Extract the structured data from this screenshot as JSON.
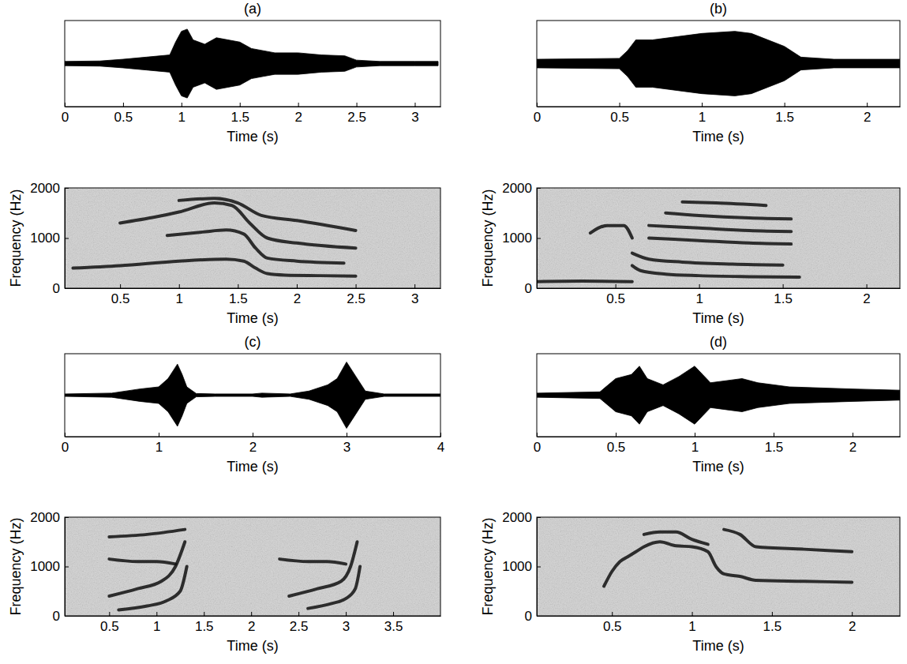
{
  "chart_data": [
    {
      "type": "area",
      "title": "(a)",
      "xlabel": "Time (s)",
      "color": "#000000",
      "x": [
        0,
        0.3,
        0.5,
        0.7,
        0.9,
        0.95,
        1.0,
        1.05,
        1.1,
        1.2,
        1.3,
        1.4,
        1.5,
        1.6,
        1.7,
        1.8,
        2.0,
        2.2,
        2.4,
        2.5,
        2.7,
        3.0,
        3.2
      ],
      "values": [
        0.05,
        0.06,
        0.1,
        0.15,
        0.2,
        0.5,
        0.75,
        0.8,
        0.55,
        0.45,
        0.6,
        0.55,
        0.5,
        0.35,
        0.3,
        0.25,
        0.25,
        0.2,
        0.18,
        0.08,
        0.05,
        0.05,
        0.05
      ],
      "xlim": [
        0,
        3.22
      ],
      "xticks": [
        0,
        0.5,
        1,
        1.5,
        2,
        2.5,
        3
      ],
      "ylim": [
        -1,
        1
      ],
      "tick_labels": "x"
    },
    {
      "type": "line",
      "xlabel": "Time (s)",
      "ylabel": "Frequency (Hz)",
      "color": "#111111",
      "xlim": [
        0.03,
        3.22
      ],
      "xticks": [
        0.5,
        1,
        1.5,
        2,
        2.5,
        3
      ],
      "ylim": [
        0,
        2000
      ],
      "yticks": [
        0,
        1000,
        2000
      ],
      "series": [
        {
          "x": [
            0.1,
            0.5,
            1.0,
            1.4,
            1.55,
            1.65,
            1.75,
            1.9,
            2.2,
            2.5
          ],
          "values": [
            400,
            450,
            540,
            580,
            540,
            400,
            290,
            260,
            250,
            240
          ]
        },
        {
          "x": [
            0.9,
            1.2,
            1.4,
            1.55,
            1.65,
            1.75,
            2.0,
            2.4
          ],
          "values": [
            1050,
            1120,
            1160,
            1080,
            800,
            600,
            540,
            500
          ]
        },
        {
          "x": [
            0.5,
            0.8,
            1.0,
            1.3,
            1.45,
            1.6,
            1.75,
            2.0,
            2.5
          ],
          "values": [
            1300,
            1420,
            1520,
            1700,
            1650,
            1300,
            1000,
            900,
            800
          ]
        },
        {
          "x": [
            1.0,
            1.3,
            1.5,
            1.7,
            2.0,
            2.5
          ],
          "values": [
            1750,
            1790,
            1700,
            1450,
            1350,
            1150
          ]
        }
      ]
    },
    {
      "type": "area",
      "title": "(b)",
      "xlabel": "Time (s)",
      "color": "#000000",
      "x": [
        0,
        0.5,
        0.55,
        0.6,
        0.7,
        0.8,
        1.0,
        1.2,
        1.3,
        1.4,
        1.5,
        1.6,
        1.8,
        2.0,
        2.2
      ],
      "values": [
        0.1,
        0.12,
        0.3,
        0.55,
        0.55,
        0.6,
        0.7,
        0.75,
        0.7,
        0.55,
        0.4,
        0.15,
        0.1,
        0.1,
        0.1
      ],
      "xlim": [
        0,
        2.2
      ],
      "xticks": [
        0,
        0.5,
        1,
        1.5,
        2
      ],
      "ylim": [
        -1,
        1
      ],
      "tick_labels": "x"
    },
    {
      "type": "line",
      "xlabel": "Time (s)",
      "ylabel": "Frequency (Hz)",
      "color": "#111111",
      "xlim": [
        0.03,
        2.2
      ],
      "xticks": [
        0.5,
        1,
        1.5,
        2
      ],
      "ylim": [
        0,
        2000
      ],
      "yticks": [
        0,
        1000,
        2000
      ],
      "series": [
        {
          "x": [
            0.03,
            0.3,
            0.6
          ],
          "values": [
            130,
            140,
            130
          ]
        },
        {
          "x": [
            0.35,
            0.45,
            0.55,
            0.6
          ],
          "values": [
            1100,
            1250,
            1250,
            1000
          ]
        },
        {
          "x": [
            0.6,
            0.65,
            0.8,
            1.0,
            1.3,
            1.6
          ],
          "values": [
            450,
            350,
            280,
            250,
            230,
            220
          ]
        },
        {
          "x": [
            0.6,
            0.7,
            0.9,
            1.2,
            1.5
          ],
          "values": [
            700,
            580,
            520,
            480,
            460
          ]
        },
        {
          "x": [
            0.7,
            1.0,
            1.3,
            1.55
          ],
          "values": [
            1000,
            950,
            900,
            880
          ]
        },
        {
          "x": [
            0.7,
            1.0,
            1.3,
            1.55
          ],
          "values": [
            1250,
            1200,
            1150,
            1130
          ]
        },
        {
          "x": [
            0.8,
            1.0,
            1.3,
            1.55
          ],
          "values": [
            1500,
            1450,
            1400,
            1380
          ]
        },
        {
          "x": [
            0.9,
            1.1,
            1.4
          ],
          "values": [
            1720,
            1700,
            1650
          ]
        }
      ]
    },
    {
      "type": "area",
      "title": "(c)",
      "xlabel": "Time (s)",
      "color": "#000000",
      "x": [
        0,
        0.5,
        0.8,
        1.0,
        1.1,
        1.2,
        1.25,
        1.3,
        1.4,
        1.6,
        2.0,
        2.1,
        2.4,
        2.6,
        2.8,
        2.9,
        3.0,
        3.1,
        3.2,
        3.4,
        4.0
      ],
      "values": [
        0.03,
        0.05,
        0.15,
        0.2,
        0.4,
        0.75,
        0.5,
        0.2,
        0.04,
        0.03,
        0.03,
        0.05,
        0.03,
        0.1,
        0.25,
        0.4,
        0.8,
        0.45,
        0.1,
        0.03,
        0.03
      ],
      "xlim": [
        0,
        4
      ],
      "xticks": [
        0,
        1,
        2,
        3,
        4
      ],
      "ylim": [
        -1,
        1
      ],
      "tick_labels": "x"
    },
    {
      "type": "line",
      "xlabel": "Time (s)",
      "ylabel": "Frequency (Hz)",
      "color": "#111111",
      "xlim": [
        0.03,
        4
      ],
      "xticks": [
        0.5,
        1,
        1.5,
        2,
        2.5,
        3,
        3.5
      ],
      "ylim": [
        0,
        2000
      ],
      "yticks": [
        0,
        1000,
        2000
      ],
      "series": [
        {
          "x": [
            0.6,
            0.9,
            1.1,
            1.25,
            1.32
          ],
          "values": [
            120,
            200,
            300,
            500,
            1000
          ]
        },
        {
          "x": [
            0.5,
            0.8,
            1.05,
            1.2,
            1.3
          ],
          "values": [
            400,
            550,
            700,
            1000,
            1500
          ]
        },
        {
          "x": [
            0.5,
            0.8,
            1.0,
            1.2
          ],
          "values": [
            1150,
            1100,
            1100,
            1050
          ]
        },
        {
          "x": [
            0.5,
            0.9,
            1.3
          ],
          "values": [
            1600,
            1650,
            1750
          ]
        },
        {
          "x": [
            2.6,
            2.85,
            3.0,
            3.1,
            3.15
          ],
          "values": [
            150,
            250,
            350,
            550,
            1000
          ]
        },
        {
          "x": [
            2.4,
            2.7,
            2.95,
            3.05,
            3.12
          ],
          "values": [
            400,
            550,
            700,
            1000,
            1500
          ]
        },
        {
          "x": [
            2.3,
            2.6,
            2.8,
            3.0
          ],
          "values": [
            1150,
            1100,
            1100,
            1050
          ]
        }
      ]
    },
    {
      "type": "area",
      "title": "(d)",
      "xlabel": "Time (s)",
      "color": "#000000",
      "x": [
        0,
        0.4,
        0.5,
        0.6,
        0.65,
        0.7,
        0.8,
        0.9,
        1.0,
        1.05,
        1.1,
        1.2,
        1.3,
        1.4,
        1.6,
        2.0,
        2.3
      ],
      "values": [
        0.05,
        0.08,
        0.4,
        0.5,
        0.7,
        0.4,
        0.25,
        0.45,
        0.7,
        0.5,
        0.3,
        0.35,
        0.4,
        0.3,
        0.2,
        0.15,
        0.12
      ],
      "xlim": [
        0,
        2.3
      ],
      "xticks": [
        0,
        0.5,
        1,
        1.5,
        2
      ],
      "ylim": [
        -1,
        1
      ],
      "tick_labels": "x"
    },
    {
      "type": "line",
      "xlabel": "Time (s)",
      "ylabel": "Frequency (Hz)",
      "color": "#111111",
      "xlim": [
        0.03,
        2.3
      ],
      "xticks": [
        0.5,
        1,
        1.5,
        2
      ],
      "ylim": [
        0,
        2000
      ],
      "yticks": [
        0,
        1000,
        2000
      ],
      "series": [
        {
          "x": [
            0.45,
            0.5,
            0.55,
            0.6,
            0.65,
            0.7,
            0.8,
            0.9,
            1.0,
            1.1,
            1.15,
            1.2,
            1.3,
            1.4,
            1.7,
            2.0
          ],
          "values": [
            600,
            900,
            1100,
            1200,
            1300,
            1400,
            1500,
            1420,
            1400,
            1300,
            1000,
            850,
            800,
            720,
            700,
            680
          ]
        },
        {
          "x": [
            0.7,
            0.8,
            0.9,
            1.0,
            1.1
          ],
          "values": [
            1650,
            1700,
            1700,
            1550,
            1450
          ]
        },
        {
          "x": [
            1.2,
            1.3,
            1.4,
            1.7,
            2.0
          ],
          "values": [
            1750,
            1650,
            1400,
            1350,
            1300
          ]
        }
      ]
    }
  ]
}
